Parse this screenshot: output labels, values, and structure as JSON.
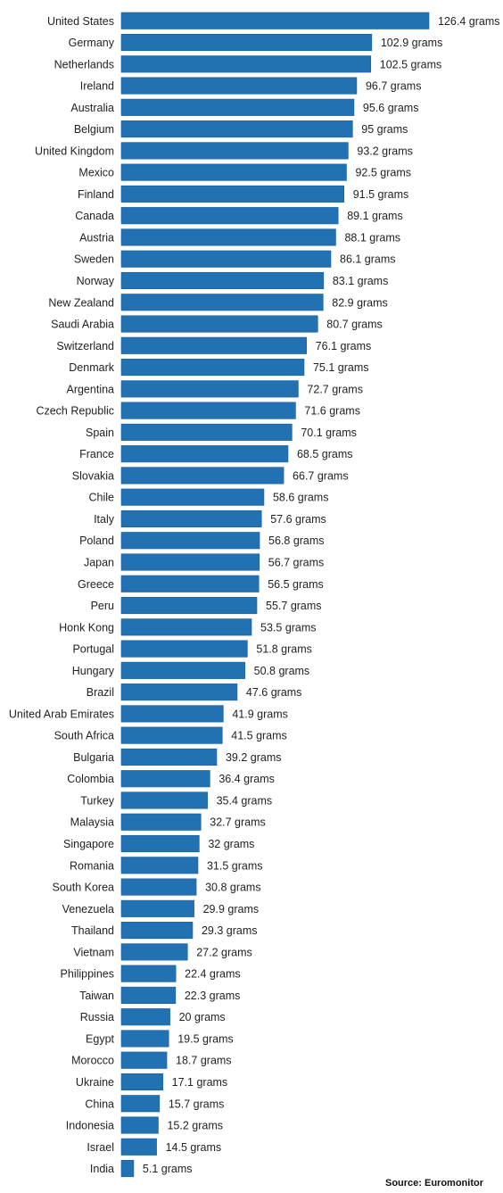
{
  "chart_data": {
    "type": "bar",
    "orientation": "horizontal",
    "categories": [
      "United States",
      "Germany",
      "Netherlands",
      "Ireland",
      "Australia",
      "Belgium",
      "United Kingdom",
      "Mexico",
      "Finland",
      "Canada",
      "Austria",
      "Sweden",
      "Norway",
      "New Zealand",
      "Saudi Arabia",
      "Switzerland",
      "Denmark",
      "Argentina",
      "Czech Republic",
      "Spain",
      "France",
      "Slovakia",
      "Chile",
      "Italy",
      "Poland",
      "Japan",
      "Greece",
      "Peru",
      "Honk Kong",
      "Portugal",
      "Hungary",
      "Brazil",
      "United Arab Emirates",
      "South Africa",
      "Bulgaria",
      "Colombia",
      "Turkey",
      "Malaysia",
      "Singapore",
      "Romania",
      "South Korea",
      "Venezuela",
      "Thailand",
      "Vietnam",
      "Philippines",
      "Taiwan",
      "Russia",
      "Egypt",
      "Morocco",
      "Ukraine",
      "China",
      "Indonesia",
      "Israel",
      "India"
    ],
    "values": [
      126.4,
      102.9,
      102.5,
      96.7,
      95.6,
      95,
      93.2,
      92.5,
      91.5,
      89.1,
      88.1,
      86.1,
      83.1,
      82.9,
      80.7,
      76.1,
      75.1,
      72.7,
      71.6,
      70.1,
      68.5,
      66.7,
      58.6,
      57.6,
      56.8,
      56.7,
      56.5,
      55.7,
      53.5,
      51.8,
      50.8,
      47.6,
      41.9,
      41.5,
      39.2,
      36.4,
      35.4,
      32.7,
      32,
      31.5,
      30.8,
      29.9,
      29.3,
      27.2,
      22.4,
      22.3,
      20,
      19.5,
      18.7,
      17.1,
      15.7,
      15.2,
      14.5,
      5.1
    ],
    "value_labels": [
      "126.4 grams",
      "102.9 grams",
      "102.5 grams",
      "96.7 grams",
      "95.6 grams",
      "95 grams",
      "93.2 grams",
      "92.5 grams",
      "91.5 grams",
      "89.1 grams",
      "88.1 grams",
      "86.1 grams",
      "83.1 grams",
      "82.9 grams",
      "80.7 grams",
      "76.1 grams",
      "75.1 grams",
      "72.7 grams",
      "71.6 grams",
      "70.1 grams",
      "68.5 grams",
      "66.7 grams",
      "58.6 grams",
      "57.6 grams",
      "56.8 grams",
      "56.7 grams",
      "56.5 grams",
      "55.7 grams",
      "53.5 grams",
      "51.8 grams",
      "50.8 grams",
      "47.6 grams",
      "41.9 grams",
      "41.5 grams",
      "39.2 grams",
      "36.4 grams",
      "35.4 grams",
      "32.7 grams",
      "32 grams",
      "31.5 grams",
      "30.8 grams",
      "29.9 grams",
      "29.3 grams",
      "27.2 grams",
      "22.4 grams",
      "22.3 grams",
      "20 grams",
      "19.5 grams",
      "18.7 grams",
      "17.1 grams",
      "15.7 grams",
      "15.2 grams",
      "14.5 grams",
      "5.1 grams"
    ],
    "title": "",
    "xlabel": "",
    "ylabel": "",
    "xlim": [
      0,
      126.4
    ],
    "grid": false,
    "legend": "none",
    "bar_color": "#2271b3",
    "source": "Source: Euromonitor"
  }
}
